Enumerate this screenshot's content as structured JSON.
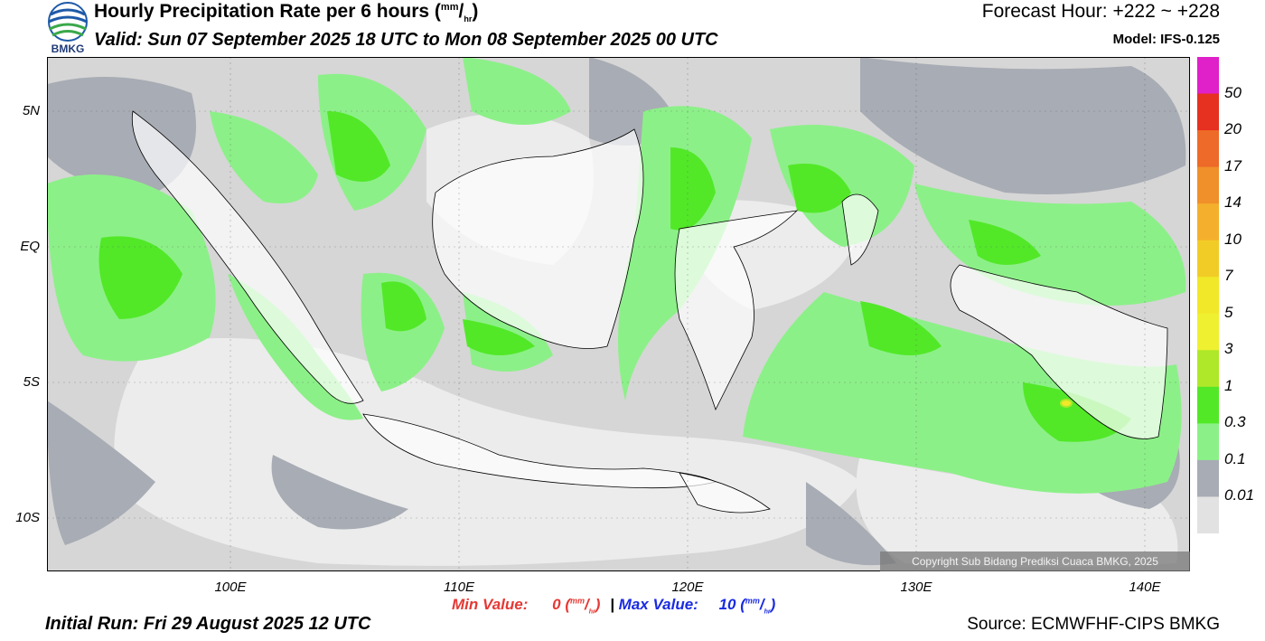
{
  "header": {
    "title": "Hourly Precipitation Rate per 6 hours",
    "title_unit_num": "mm",
    "title_unit_den": "hr",
    "valid": "Valid: Sun 07 September 2025 18 UTC to Mon 08 September 2025 00 UTC",
    "forecast_hour": "Forecast Hour: +222 ~ +228",
    "model": "Model: IFS-0.125"
  },
  "logo": {
    "text": "BMKG",
    "icon": "bmkg-logo"
  },
  "axes": {
    "lat_labels": [
      "5N",
      "EQ",
      "5S",
      "10S"
    ],
    "lon_labels": [
      "100E",
      "110E",
      "120E",
      "130E",
      "140E"
    ]
  },
  "colorbar": {
    "labels": [
      "50",
      "20",
      "17",
      "14",
      "10",
      "7",
      "5",
      "3",
      "1",
      "0.3",
      "0.1",
      "0.01"
    ],
    "colors": [
      "#e020c8",
      "#e63020",
      "#ee6a28",
      "#f0902a",
      "#f4b02c",
      "#f2cc26",
      "#f0e828",
      "#eef030",
      "#aee828",
      "#52e828",
      "#8cf088",
      "#a8acb4",
      "#e2e2e2"
    ]
  },
  "map_colors": {
    "ocean_bg": "#d6d6d6",
    "very_light": "#ececec",
    "dark_gray": "#a8acb4",
    "light_green": "#8cf088",
    "bright_green": "#52e828",
    "land_white": "#ffffff",
    "coast": "#000000"
  },
  "copyright": "Copyright Sub Bidang Prediksi Cuaca BMKG, 2025",
  "footer": {
    "min_label": "Min Value:",
    "min_value": "0",
    "separator": "|",
    "max_label": "Max Value:",
    "max_value": "10",
    "unit_num": "mm",
    "unit_den": "hr",
    "initial_run": "Initial Run: Fri 29 August 2025 12 UTC",
    "source": "Source: ECMWFHF-CIPS BMKG"
  }
}
